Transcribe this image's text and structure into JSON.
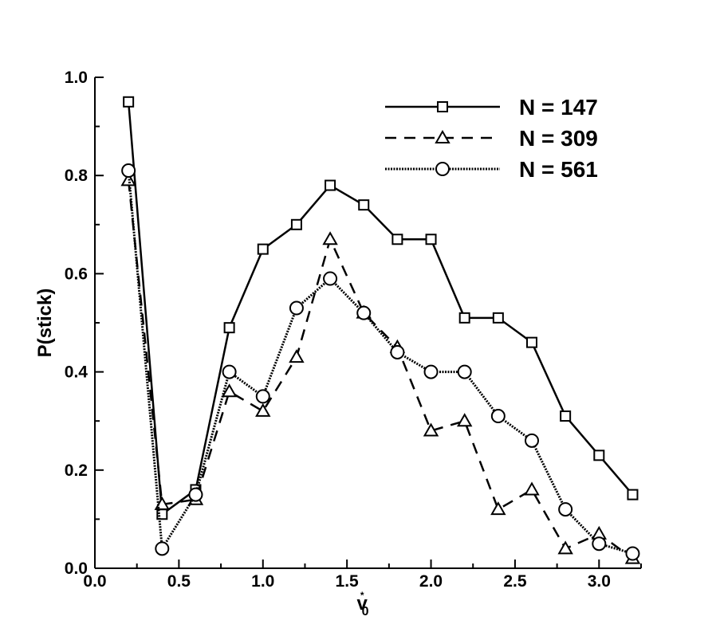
{
  "chart_data": {
    "type": "line",
    "title": "",
    "xlabel": "v",
    "xlabel_sup": "*",
    "xlabel_sub": "0",
    "ylabel": "P(stick)",
    "xlim": [
      0.0,
      3.25
    ],
    "ylim": [
      0.0,
      1.0
    ],
    "x_ticks": [
      0.0,
      0.5,
      1.0,
      1.5,
      2.0,
      2.5,
      3.0
    ],
    "x_tick_labels": [
      "0.0",
      "0.5",
      "1.0",
      "1.5",
      "2.0",
      "2.5",
      "3.0"
    ],
    "y_ticks": [
      0.0,
      0.2,
      0.4,
      0.6,
      0.8,
      1.0
    ],
    "y_tick_labels": [
      "0.0",
      "0.2",
      "0.4",
      "0.6",
      "0.8",
      "1.0"
    ],
    "grid": false,
    "legend_position": "top-right",
    "x": [
      0.2,
      0.4,
      0.6,
      0.8,
      1.0,
      1.2,
      1.4,
      1.6,
      1.8,
      2.0,
      2.2,
      2.4,
      2.6,
      2.8,
      3.0,
      3.2
    ],
    "series": [
      {
        "name": "N = 147",
        "line_style": "solid",
        "marker": "square",
        "values": [
          0.95,
          0.11,
          0.16,
          0.49,
          0.65,
          0.7,
          0.78,
          0.74,
          0.67,
          0.67,
          0.51,
          0.51,
          0.46,
          0.31,
          0.23,
          0.15
        ]
      },
      {
        "name": "N = 309",
        "line_style": "dashed",
        "marker": "triangle",
        "values": [
          0.79,
          0.13,
          0.14,
          0.36,
          0.32,
          0.43,
          0.67,
          0.52,
          0.45,
          0.28,
          0.3,
          0.12,
          0.16,
          0.04,
          0.07,
          0.02
        ]
      },
      {
        "name": "N = 561",
        "line_style": "dotted",
        "marker": "circle",
        "values": [
          0.81,
          0.04,
          0.15,
          0.4,
          0.35,
          0.53,
          0.59,
          0.52,
          0.44,
          0.4,
          0.4,
          0.31,
          0.26,
          0.12,
          0.05,
          0.03
        ]
      }
    ]
  }
}
